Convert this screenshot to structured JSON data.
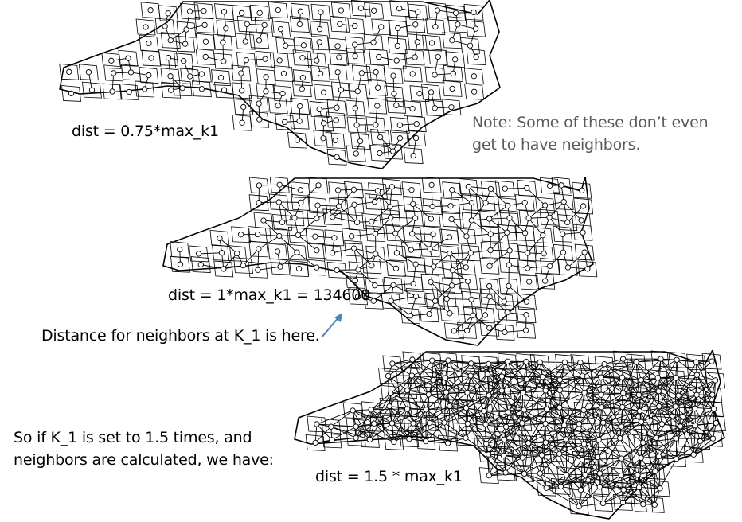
{
  "labels": {
    "dist1": "dist = 0.75*max_k1",
    "note_line1": "Note: Some of these don’t even",
    "note_line2": "get to have neighbors.",
    "dist2": "dist = 1*max_k1 = 134600",
    "distance_note": "Distance for neighbors at K_1 is here.",
    "so_line1": "So if K_1 is set to 1.5 times, and",
    "so_line2": "neighbors are calculated, we have:",
    "dist3": "dist = 1.5 * max_k1"
  },
  "colors": {
    "note_text": "#5a5a5a",
    "arrow": "#4f81bd",
    "map_stroke": "#000000"
  },
  "maps": [
    {
      "name": "nc-map-dist-0.75",
      "region": "North Carolina counties",
      "neighbor_density": "sparse"
    },
    {
      "name": "nc-map-dist-1.0",
      "region": "North Carolina counties",
      "neighbor_density": "medium"
    },
    {
      "name": "nc-map-dist-1.5",
      "region": "North Carolina counties",
      "neighbor_density": "dense"
    }
  ]
}
